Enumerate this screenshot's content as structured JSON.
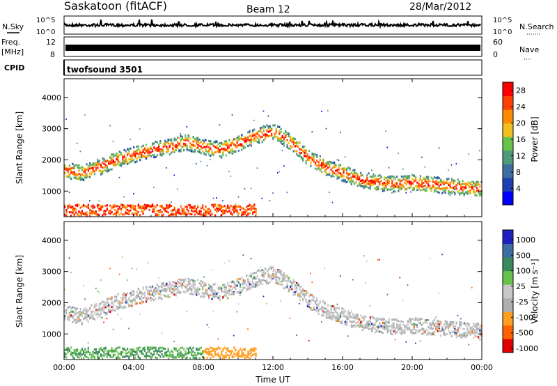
{
  "header": {
    "station": "Saskatoon (fitACF)",
    "beam": "Beam 12",
    "date": "28/Mar/2012"
  },
  "top_panels": {
    "nsky_label": "N.Sky",
    "nsearch_label": "N.Search",
    "nsearch_dots": "·······",
    "noise_ticks": [
      "10^5",
      "10^0"
    ],
    "freq_label": "Freq.",
    "freq_unit": "[MHz]",
    "freq_ticks": [
      "12",
      "8"
    ],
    "nave_label": "Nave",
    "nave_dots": "····",
    "nave_ticks": [
      "60",
      "0"
    ],
    "cpid_label": "CPID",
    "cpid_value": "twofsound 3501"
  },
  "colors": {
    "power": [
      "#0000ff",
      "#2040b0",
      "#3d6ea0",
      "#4f9a78",
      "#66c24a",
      "#f0c020",
      "#ff8c00",
      "#ff4000",
      "#ff0000"
    ],
    "velocity": [
      "#e00000",
      "#ff6000",
      "#ff9e20",
      "#b0b0b0",
      "#c8c8c8",
      "#66c24a",
      "#3b8a5e",
      "#3d6ea0",
      "#2020c0"
    ]
  },
  "chart_data": [
    {
      "type": "heatmap",
      "name": "power",
      "xlabel": "",
      "ylabel": "Slant Range [km]",
      "x_ticks": [
        "00:00",
        "04:00",
        "08:00",
        "12:00",
        "16:00",
        "20:00",
        "00:00"
      ],
      "xlim": [
        0,
        24
      ],
      "ylim": [
        180,
        4600
      ],
      "y_ticks": [
        1000,
        2000,
        3000,
        4000
      ],
      "colorbar": {
        "label": "Power [dB]",
        "ticks": [
          4,
          8,
          12,
          16,
          20,
          24,
          28
        ],
        "range": [
          0,
          30
        ]
      },
      "scatter_band_km": [
        [
          0,
          1700
        ],
        [
          1,
          1600
        ],
        [
          2,
          1800
        ],
        [
          3,
          2050
        ],
        [
          4,
          2200
        ],
        [
          5,
          2350
        ],
        [
          6,
          2450
        ],
        [
          7,
          2600
        ],
        [
          8,
          2450
        ],
        [
          9,
          2350
        ],
        [
          10,
          2550
        ],
        [
          11,
          2800
        ],
        [
          12,
          2950
        ],
        [
          13,
          2600
        ],
        [
          14,
          2100
        ],
        [
          15,
          1800
        ],
        [
          16,
          1600
        ],
        [
          17,
          1400
        ],
        [
          18,
          1300
        ],
        [
          19,
          1250
        ],
        [
          20,
          1300
        ],
        [
          21,
          1250
        ],
        [
          22,
          1200
        ],
        [
          23,
          1150
        ],
        [
          24,
          1100
        ]
      ]
    },
    {
      "type": "heatmap",
      "name": "velocity",
      "xlabel": "Time UT",
      "ylabel": "Slant Range [km]",
      "x_ticks": [
        "00:00",
        "04:00",
        "08:00",
        "12:00",
        "16:00",
        "20:00",
        "00:00"
      ],
      "xlim": [
        0,
        24
      ],
      "ylim": [
        180,
        4600
      ],
      "y_ticks": [
        1000,
        2000,
        3000,
        4000
      ],
      "colorbar": {
        "label": "Velocity [m s⁻¹]",
        "ticks": [
          "1000",
          "500",
          "100",
          "25",
          "-25",
          "-100",
          "-500",
          "-1000"
        ]
      }
    }
  ]
}
